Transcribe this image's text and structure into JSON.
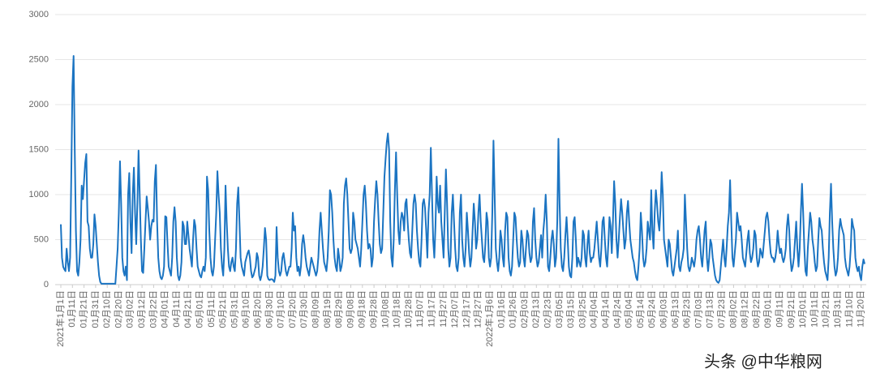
{
  "chart_data": {
    "type": "line",
    "color": "#1b74c2",
    "grid": true,
    "ylim": [
      0,
      3000
    ],
    "yticks": [
      0,
      500,
      1000,
      1500,
      2000,
      2500,
      3000
    ],
    "watermark": "头条 @中华粮网",
    "categories": [
      "2021年1月1日",
      null,
      null,
      null,
      null,
      null,
      null,
      null,
      null,
      null,
      "01月11日",
      null,
      null,
      null,
      null,
      null,
      null,
      null,
      null,
      null,
      "01月21日",
      null,
      null,
      null,
      null,
      null,
      null,
      null,
      null,
      null,
      "01月31日",
      null,
      null,
      null,
      null,
      null,
      null,
      null,
      null,
      null,
      "02月10日",
      null,
      null,
      null,
      null,
      null,
      null,
      null,
      null,
      null,
      "02月20日",
      null,
      null,
      null,
      null,
      null,
      null,
      null,
      null,
      null,
      "03月02日",
      null,
      null,
      null,
      null,
      null,
      null,
      null,
      null,
      null,
      "03月12日",
      null,
      null,
      null,
      null,
      null,
      null,
      null,
      null,
      null,
      "03月22日",
      null,
      null,
      null,
      null,
      null,
      null,
      null,
      null,
      null,
      "04月01日",
      null,
      null,
      null,
      null,
      null,
      null,
      null,
      null,
      null,
      "04月11日",
      null,
      null,
      null,
      null,
      null,
      null,
      null,
      null,
      null,
      "04月21日",
      null,
      null,
      null,
      null,
      null,
      null,
      null,
      null,
      null,
      "05月01日",
      null,
      null,
      null,
      null,
      null,
      null,
      null,
      null,
      null,
      "05月11日",
      null,
      null,
      null,
      null,
      null,
      null,
      null,
      null,
      null,
      "05月21日",
      null,
      null,
      null,
      null,
      null,
      null,
      null,
      null,
      null,
      "05月31日",
      null,
      null,
      null,
      null,
      null,
      null,
      null,
      null,
      null,
      "06月10日",
      null,
      null,
      null,
      null,
      null,
      null,
      null,
      null,
      null,
      "06月20日",
      null,
      null,
      null,
      null,
      null,
      null,
      null,
      null,
      null,
      "06月30日",
      null,
      null,
      null,
      null,
      null,
      null,
      null,
      null,
      null,
      "07月10日",
      null,
      null,
      null,
      null,
      null,
      null,
      null,
      null,
      null,
      "07月20日",
      null,
      null,
      null,
      null,
      null,
      null,
      null,
      null,
      null,
      "07月30日",
      null,
      null,
      null,
      null,
      null,
      null,
      null,
      null,
      null,
      "08月09日",
      null,
      null,
      null,
      null,
      null,
      null,
      null,
      null,
      null,
      "08月19日",
      null,
      null,
      null,
      null,
      null,
      null,
      null,
      null,
      null,
      "08月29日",
      null,
      null,
      null,
      null,
      null,
      null,
      null,
      null,
      null,
      "09月08日",
      null,
      null,
      null,
      null,
      null,
      null,
      null,
      null,
      null,
      "09月18日",
      null,
      null,
      null,
      null,
      null,
      null,
      null,
      null,
      null,
      "09月28日",
      null,
      null,
      null,
      null,
      null,
      null,
      null,
      null,
      null,
      "10月08日",
      null,
      null,
      null,
      null,
      null,
      null,
      null,
      null,
      null,
      "10月18日",
      null,
      null,
      null,
      null,
      null,
      null,
      null,
      null,
      null,
      "10月28日",
      null,
      null,
      null,
      null,
      null,
      null,
      null,
      null,
      null,
      "11月07日",
      null,
      null,
      null,
      null,
      null,
      null,
      null,
      null,
      null,
      "11月17日",
      null,
      null,
      null,
      null,
      null,
      null,
      null,
      null,
      null,
      "11月27日",
      null,
      null,
      null,
      null,
      null,
      null,
      null,
      null,
      null,
      "12月07日",
      null,
      null,
      null,
      null,
      null,
      null,
      null,
      null,
      null,
      "12月17日",
      null,
      null,
      null,
      null,
      null,
      null,
      null,
      null,
      null,
      "12月27日",
      null,
      null,
      null,
      null,
      null,
      null,
      null,
      null,
      null,
      "2022年1月6日",
      null,
      null,
      null,
      null,
      null,
      null,
      null,
      null,
      null,
      "01月16日",
      null,
      null,
      null,
      null,
      null,
      null,
      null,
      null,
      null,
      "01月26日",
      null,
      null,
      null,
      null,
      null,
      null,
      null,
      null,
      null,
      "02月03日",
      null,
      null,
      null,
      null,
      null,
      null,
      null,
      null,
      null,
      "02月13日",
      null,
      null,
      null,
      null,
      null,
      null,
      null,
      null,
      null,
      "02月23日",
      null,
      null,
      null,
      null,
      null,
      null,
      null,
      null,
      null,
      "03月05日",
      null,
      null,
      null,
      null,
      null,
      null,
      null,
      null,
      null,
      "03月15日",
      null,
      null,
      null,
      null,
      null,
      null,
      null,
      null,
      null,
      "03月25日",
      null,
      null,
      null,
      null,
      null,
      null,
      null,
      null,
      null,
      "04月04日",
      null,
      null,
      null,
      null,
      null,
      null,
      null,
      null,
      null,
      "04月14日",
      null,
      null,
      null,
      null,
      null,
      null,
      null,
      null,
      null,
      "04月24日",
      null,
      null,
      null,
      null,
      null,
      null,
      null,
      null,
      null,
      "05月04日",
      null,
      null,
      null,
      null,
      null,
      null,
      null,
      null,
      null,
      "05月14日",
      null,
      null,
      null,
      null,
      null,
      null,
      null,
      null,
      null,
      "05月24日",
      null,
      null,
      null,
      null,
      null,
      null,
      null,
      null,
      null,
      "06月03日",
      null,
      null,
      null,
      null,
      null,
      null,
      null,
      null,
      null,
      "06月13日",
      null,
      null,
      null,
      null,
      null,
      null,
      null,
      null,
      null,
      "06月23日",
      null,
      null,
      null,
      null,
      null,
      null,
      null,
      null,
      null,
      "07月03日",
      null,
      null,
      null,
      null,
      null,
      null,
      null,
      null,
      null,
      "07月13日",
      null,
      null,
      null,
      null,
      null,
      null,
      null,
      null,
      null,
      "07月23日",
      null,
      null,
      null,
      null,
      null,
      null,
      null,
      null,
      null,
      "08月02日",
      null,
      null,
      null,
      null,
      null,
      null,
      null,
      null,
      null,
      "08月12日",
      null,
      null,
      null,
      null,
      null,
      null,
      null,
      null,
      null,
      "08月22日",
      null,
      null,
      null,
      null,
      null,
      null,
      null,
      null,
      null,
      "09月01日",
      null,
      null,
      null,
      null,
      null,
      null,
      null,
      null,
      null,
      "09月11日",
      null,
      null,
      null,
      null,
      null,
      null,
      null,
      null,
      null,
      "09月21日",
      null,
      null,
      null,
      null,
      null,
      null,
      null,
      null,
      null,
      "10月01日",
      null,
      null,
      null,
      null,
      null,
      null,
      null,
      null,
      null,
      "10月11日",
      null,
      null,
      null,
      null,
      null,
      null,
      null,
      null,
      null,
      "10月21日",
      null,
      null,
      null,
      null,
      null,
      null,
      null,
      null,
      null,
      "10月31日",
      null,
      null,
      null,
      null,
      null,
      null,
      null,
      null,
      null,
      "11月10日",
      null,
      null,
      null,
      null,
      null,
      null,
      null,
      null,
      null,
      "11月20日",
      null,
      null,
      null
    ],
    "values": [
      670,
      300,
      200,
      170,
      150,
      400,
      250,
      150,
      300,
      1200,
      2200,
      2540,
      1500,
      600,
      150,
      100,
      250,
      500,
      1100,
      950,
      1150,
      1350,
      1450,
      700,
      650,
      400,
      300,
      300,
      450,
      780,
      650,
      450,
      250,
      100,
      30,
      10,
      10,
      10,
      10,
      10,
      10,
      10,
      10,
      10,
      10,
      10,
      10,
      10,
      200,
      400,
      800,
      1370,
      900,
      300,
      150,
      100,
      200,
      50,
      1000,
      1240,
      700,
      350,
      1000,
      1300,
      800,
      450,
      900,
      1490,
      1000,
      500,
      150,
      130,
      400,
      700,
      980,
      850,
      700,
      500,
      650,
      720,
      700,
      1150,
      1330,
      700,
      300,
      150,
      80,
      60,
      100,
      200,
      760,
      750,
      450,
      200,
      150,
      100,
      300,
      700,
      860,
      700,
      300,
      100,
      50,
      100,
      250,
      700,
      650,
      450,
      450,
      700,
      550,
      400,
      300,
      200,
      500,
      720,
      650,
      400,
      200,
      150,
      100,
      80,
      150,
      200,
      150,
      300,
      1200,
      1050,
      600,
      300,
      150,
      100,
      200,
      500,
      800,
      1260,
      1000,
      800,
      400,
      200,
      100,
      400,
      1100,
      700,
      400,
      200,
      150,
      250,
      300,
      200,
      150,
      400,
      900,
      1080,
      700,
      300,
      200,
      150,
      100,
      250,
      300,
      350,
      380,
      300,
      150,
      80,
      100,
      150,
      200,
      350,
      300,
      100,
      50,
      100,
      200,
      400,
      630,
      500,
      100,
      60,
      50,
      60,
      60,
      50,
      30,
      100,
      640,
      300,
      150,
      100,
      150,
      300,
      350,
      250,
      150,
      100,
      150,
      200,
      200,
      400,
      800,
      600,
      650,
      300,
      150,
      200,
      100,
      200,
      450,
      550,
      450,
      300,
      200,
      150,
      100,
      200,
      300,
      250,
      200,
      150,
      100,
      150,
      300,
      600,
      800,
      600,
      400,
      250,
      200,
      150,
      300,
      600,
      1050,
      1000,
      800,
      500,
      300,
      200,
      150,
      400,
      300,
      150,
      200,
      300,
      900,
      1100,
      1180,
      1000,
      700,
      400,
      350,
      400,
      800,
      700,
      500,
      450,
      400,
      300,
      200,
      400,
      700,
      1000,
      1100,
      900,
      600,
      400,
      450,
      400,
      200,
      300,
      700,
      950,
      1150,
      1000,
      700,
      450,
      350,
      400,
      800,
      1200,
      1400,
      1580,
      1680,
      1500,
      700,
      300,
      200,
      500,
      1050,
      1470,
      1000,
      600,
      450,
      700,
      800,
      750,
      600,
      900,
      950,
      700,
      500,
      350,
      300,
      600,
      900,
      1000,
      900,
      600,
      400,
      250,
      200,
      500,
      900,
      950,
      850,
      600,
      300,
      800,
      1000,
      1520,
      1000,
      500,
      300,
      650,
      1200,
      900,
      800,
      1100,
      700,
      500,
      300,
      800,
      1280,
      900,
      400,
      200,
      300,
      800,
      1000,
      700,
      400,
      200,
      150,
      300,
      800,
      1000,
      500,
      300,
      200,
      400,
      800,
      600,
      350,
      200,
      300,
      600,
      900,
      700,
      400,
      500,
      800,
      1000,
      700,
      500,
      300,
      250,
      450,
      800,
      700,
      300,
      200,
      300,
      800,
      1600,
      1000,
      400,
      250,
      150,
      300,
      600,
      500,
      300,
      200,
      600,
      800,
      750,
      300,
      150,
      100,
      200,
      500,
      800,
      750,
      500,
      300,
      200,
      250,
      600,
      500,
      300,
      200,
      400,
      600,
      550,
      350,
      250,
      300,
      700,
      850,
      500,
      300,
      200,
      250,
      400,
      550,
      300,
      600,
      750,
      1000,
      700,
      200,
      150,
      300,
      500,
      600,
      450,
      200,
      300,
      700,
      1620,
      900,
      400,
      200,
      150,
      300,
      550,
      750,
      500,
      200,
      100,
      80,
      300,
      700,
      750,
      500,
      200,
      300,
      250,
      200,
      300,
      600,
      550,
      300,
      200,
      450,
      600,
      350,
      250,
      300,
      300,
      400,
      550,
      700,
      500,
      300,
      200,
      400,
      700,
      750,
      500,
      300,
      200,
      450,
      750,
      650,
      350,
      700,
      1150,
      900,
      500,
      300,
      500,
      750,
      950,
      800,
      600,
      400,
      500,
      800,
      930,
      700,
      500,
      400,
      300,
      250,
      150,
      80,
      50,
      200,
      400,
      800,
      600,
      300,
      200,
      250,
      400,
      700,
      600,
      500,
      1050,
      600,
      400,
      800,
      1050,
      900,
      700,
      600,
      850,
      1250,
      1000,
      500,
      400,
      300,
      200,
      500,
      450,
      300,
      150,
      100,
      200,
      300,
      400,
      600,
      200,
      150,
      250,
      300,
      400,
      1000,
      700,
      400,
      200,
      150,
      200,
      300,
      250,
      200,
      300,
      500,
      600,
      650,
      500,
      300,
      200,
      400,
      600,
      700,
      300,
      150,
      300,
      500,
      450,
      300,
      200,
      100,
      50,
      30,
      20,
      50,
      200,
      350,
      500,
      300,
      200,
      400,
      650,
      800,
      1160,
      700,
      300,
      200,
      350,
      500,
      800,
      700,
      600,
      650,
      500,
      300,
      250,
      200,
      350,
      500,
      600,
      350,
      250,
      300,
      400,
      600,
      550,
      300,
      200,
      250,
      400,
      350,
      300,
      450,
      600,
      750,
      800,
      700,
      500,
      350,
      300,
      300,
      250,
      300,
      400,
      600,
      450,
      350,
      400,
      300,
      250,
      300,
      400,
      650,
      780,
      600,
      300,
      150,
      200,
      300,
      500,
      700,
      400,
      200,
      400,
      800,
      1120,
      800,
      400,
      150,
      100,
      400,
      600,
      800,
      700,
      500,
      400,
      250,
      150,
      200,
      500,
      740,
      650,
      600,
      400,
      250,
      150,
      100,
      50,
      300,
      800,
      1120,
      700,
      400,
      200,
      100,
      150,
      300,
      600,
      730,
      650,
      600,
      550,
      300,
      200,
      150,
      100,
      200,
      400,
      730,
      650,
      600,
      300,
      200,
      150,
      200,
      100,
      50,
      200,
      280,
      230
    ]
  }
}
